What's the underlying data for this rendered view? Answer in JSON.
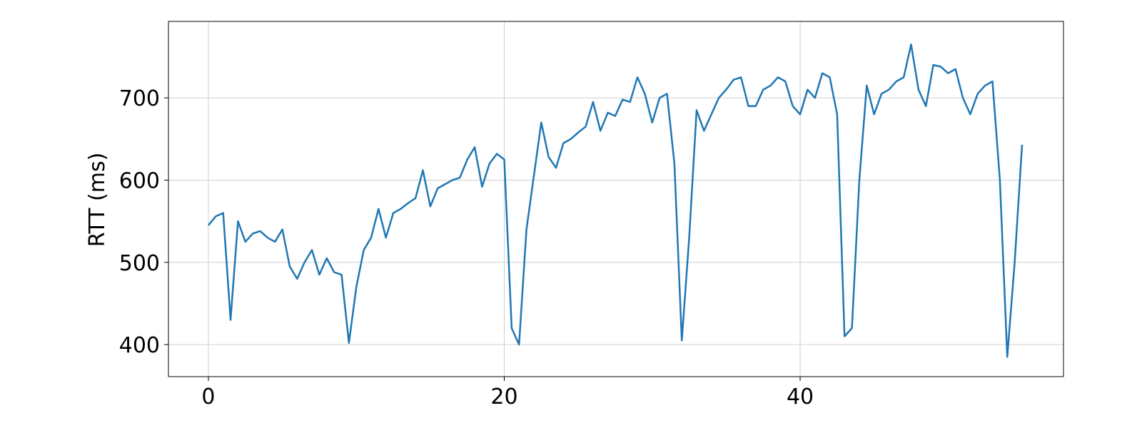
{
  "chart_data": {
    "type": "line",
    "ylabel": "RTT (ms)",
    "x": [
      0,
      0.5,
      1,
      1.5,
      2,
      2.5,
      3,
      3.5,
      4,
      4.5,
      5,
      5.5,
      6,
      6.5,
      7,
      7.5,
      8,
      8.5,
      9,
      9.5,
      10,
      10.5,
      11,
      11.5,
      12,
      12.5,
      13,
      13.5,
      14,
      14.5,
      15,
      15.5,
      16,
      16.5,
      17,
      17.5,
      18,
      18.5,
      19,
      19.5,
      20,
      20.5,
      21,
      21.5,
      22,
      22.5,
      23,
      23.5,
      24,
      24.5,
      25,
      25.5,
      26,
      26.5,
      27,
      27.5,
      28,
      28.5,
      29,
      29.5,
      30,
      30.5,
      31,
      31.5,
      32,
      32.5,
      33,
      33.5,
      34,
      34.5,
      35,
      35.5,
      36,
      36.5,
      37,
      37.5,
      38,
      38.5,
      39,
      39.5,
      40,
      40.5,
      41,
      41.5,
      42,
      42.5,
      43,
      43.5,
      44,
      44.5,
      45,
      45.5,
      46,
      46.5,
      47,
      47.5,
      48,
      48.5,
      49,
      49.5,
      50,
      50.5,
      51,
      51.5,
      52,
      52.5,
      53,
      53.5,
      54,
      54.5,
      55
    ],
    "series": [
      {
        "name": "RTT",
        "color": "#1f77b4",
        "values": [
          545,
          556,
          560,
          430,
          550,
          525,
          535,
          538,
          530,
          525,
          540,
          495,
          480,
          500,
          515,
          485,
          505,
          488,
          485,
          402,
          470,
          515,
          530,
          565,
          530,
          560,
          565,
          572,
          578,
          612,
          568,
          590,
          595,
          600,
          603,
          625,
          640,
          592,
          620,
          632,
          625,
          420,
          400,
          540,
          605,
          670,
          628,
          615,
          645,
          650,
          658,
          665,
          695,
          660,
          682,
          678,
          698,
          695,
          725,
          705,
          670,
          700,
          705,
          620,
          405,
          530,
          685,
          660,
          680,
          700,
          710,
          722,
          725,
          690,
          690,
          710,
          715,
          725,
          720,
          690,
          680,
          710,
          700,
          730,
          725,
          680,
          410,
          420,
          600,
          715,
          680,
          705,
          710,
          720,
          725,
          765,
          710,
          690,
          740,
          738,
          730,
          735,
          700,
          680,
          705,
          715,
          720,
          600,
          385,
          500,
          643
        ]
      }
    ],
    "xlim": [
      -2.7,
      57.8
    ],
    "ylim": [
      361,
      793
    ],
    "xticks": [
      0,
      20,
      40
    ],
    "yticks": [
      400,
      500,
      600,
      700
    ],
    "grid": true
  }
}
